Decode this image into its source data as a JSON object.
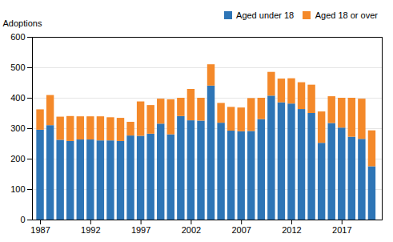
{
  "chart_data": {
    "type": "bar",
    "stacked": true,
    "ylabel": "Adoptions",
    "x": [
      1987,
      1988,
      1989,
      1990,
      1991,
      1992,
      1993,
      1994,
      1995,
      1996,
      1997,
      1998,
      1999,
      2000,
      2001,
      2002,
      2003,
      2004,
      2005,
      2006,
      2007,
      2008,
      2009,
      2010,
      2011,
      2012,
      2013,
      2014,
      2015,
      2016,
      2017,
      2018,
      2019,
      2020
    ],
    "series": [
      {
        "name": "Aged under 18",
        "color": "#2E75B6",
        "values": [
          295,
          310,
          262,
          258,
          263,
          263,
          260,
          260,
          258,
          276,
          275,
          282,
          315,
          280,
          340,
          326,
          325,
          440,
          318,
          292,
          290,
          291,
          330,
          407,
          385,
          381,
          363,
          350,
          252,
          317,
          302,
          272,
          265,
          175
        ]
      },
      {
        "name": "Aged 18 or over",
        "color": "#F4892A",
        "values": [
          67,
          99,
          76,
          82,
          76,
          76,
          79,
          76,
          76,
          45,
          113,
          94,
          82,
          115,
          60,
          103,
          75,
          70,
          65,
          78,
          78,
          108,
          70,
          78,
          78,
          83,
          88,
          93,
          103,
          88,
          98,
          128,
          132,
          118
        ]
      }
    ],
    "xlim": [
      1986.2,
      2021
    ],
    "xticks": [
      1987,
      1992,
      1997,
      2002,
      2007,
      2012,
      2017
    ],
    "ylim": [
      0,
      600
    ],
    "yticks": [
      0,
      100,
      200,
      300,
      400,
      500,
      600
    ],
    "grid": true,
    "legend": "upper right"
  }
}
